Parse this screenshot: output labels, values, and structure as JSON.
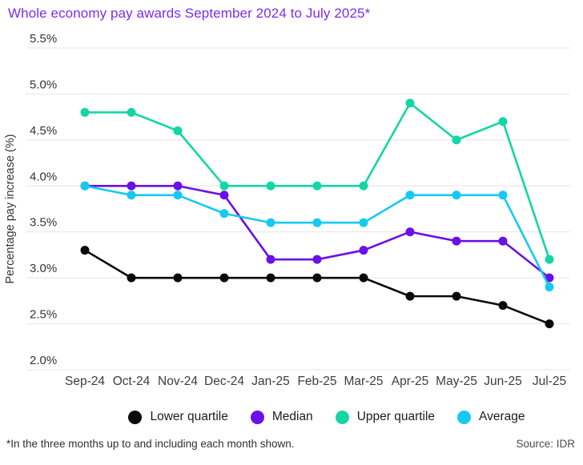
{
  "title": "Whole economy pay awards September 2024 to July 2025*",
  "footnote": "*In the three months up to and including each month shown.",
  "source": "Source: IDR",
  "colors": {
    "title": "#7B2CF2",
    "gridline": "#E4E4E4",
    "ytick_text": "#333333",
    "xtick_text": "#3C3C3C",
    "ylabel_text": "#333333",
    "lower_quartile": "#0A0A0A",
    "median": "#6B10E6",
    "upper_quartile": "#13D6A4",
    "average": "#15C9F2"
  },
  "chart_data": {
    "type": "line",
    "title": "Whole economy pay awards September 2024 to July 2025*",
    "xlabel": "",
    "ylabel": "Percentage pay increase (%)",
    "ylim": [
      2.0,
      5.5
    ],
    "grid": true,
    "legend_position": "bottom",
    "yticks": [
      "5.5%",
      "5.0%",
      "4.5%",
      "4.0%",
      "3.5%",
      "3.0%",
      "2.5%",
      "2.0%"
    ],
    "ytick_values": [
      5.5,
      5.0,
      4.5,
      4.0,
      3.5,
      3.0,
      2.5,
      2.0
    ],
    "categories": [
      "Sep-24",
      "Oct-24",
      "Nov-24",
      "Dec-24",
      "Jan-25",
      "Feb-25",
      "Mar-25",
      "Apr-25",
      "May-25",
      "Jun-25",
      "Jul-25"
    ],
    "series": [
      {
        "name": "Lower quartile",
        "color": "#0A0A0A",
        "values": [
          3.3,
          3.0,
          3.0,
          3.0,
          3.0,
          3.0,
          3.0,
          2.8,
          2.8,
          2.7,
          2.5
        ]
      },
      {
        "name": "Median",
        "color": "#6B10E6",
        "values": [
          4.0,
          4.0,
          4.0,
          3.9,
          3.2,
          3.2,
          3.3,
          3.5,
          3.4,
          3.4,
          3.0
        ]
      },
      {
        "name": "Upper quartile",
        "color": "#13D6A4",
        "values": [
          4.8,
          4.8,
          4.6,
          4.0,
          4.0,
          4.0,
          4.0,
          4.9,
          4.5,
          4.7,
          3.2
        ]
      },
      {
        "name": "Average",
        "color": "#15C9F2",
        "values": [
          4.0,
          3.9,
          3.9,
          3.7,
          3.6,
          3.6,
          3.6,
          3.9,
          3.9,
          3.9,
          2.9
        ]
      }
    ]
  }
}
